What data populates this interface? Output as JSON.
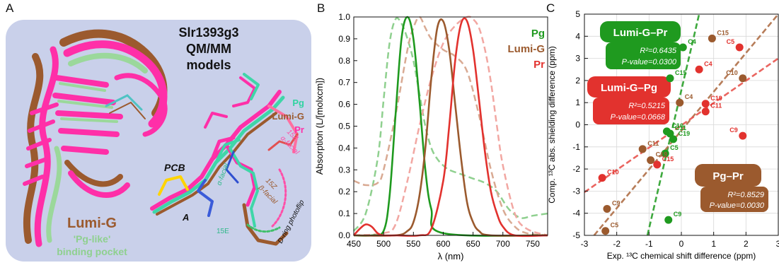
{
  "colors": {
    "pg": "#1f9a1f",
    "lumig": "#9b5a2e",
    "pr": "#e2322e",
    "pink": "#ff2fa8",
    "panel_bg": "#c9d0ea",
    "mint": "#9bd89b"
  },
  "panelA": {
    "letter": "A",
    "title_lines": [
      "Slr1393g3",
      "QM/MM",
      "models"
    ],
    "legend": {
      "pg": "Pg",
      "lumig": "Lumi-G",
      "pr": "Pr"
    },
    "labels": {
      "pcb": "PCB",
      "ring_a": "A",
      "z15_alpha": "15Z",
      "alpha_facial_top": "α-facial",
      "z15_beta": "15Z",
      "beta_facial": "β-facial",
      "alpha_facial_bottom": "α-facial",
      "e15": "15E",
      "photoflip": "D-ring photoflip"
    },
    "caption_title": "Lumi-G",
    "caption_lines": [
      "'Pg-like'",
      "binding pocket"
    ]
  },
  "panelB": {
    "letter": "B",
    "legend": {
      "pg": "Pg",
      "lumig": "Lumi-G",
      "pr": "Pr"
    }
  },
  "panelC": {
    "letter": "C",
    "boxes": {
      "lumig_pr": {
        "title": "Lumi-G–Pr",
        "r2": "R²=0.6435",
        "p": "P-value=0.0300"
      },
      "lumig_pg": {
        "title": "Lumi-G–Pg",
        "r2": "R²=0.5215",
        "p": "P-value=0.0668"
      },
      "pg_pr": {
        "title": "Pg–Pr",
        "r2": "R²=0.8529",
        "p": "P-value=0.0030"
      }
    }
  },
  "chart_data": [
    {
      "type": "line",
      "xlabel": "λ (nm)",
      "ylabel": "Absorption (L/[molxcm])",
      "xlim": [
        450,
        775
      ],
      "ylim": [
        0,
        1.0
      ],
      "x_ticks": [
        450,
        500,
        550,
        600,
        650,
        700,
        750
      ],
      "y_ticks": [
        0,
        0.1,
        0.2,
        0.3,
        0.4,
        0.5,
        0.6,
        0.7,
        0.8,
        0.9,
        1.0
      ],
      "series": [
        {
          "name": "Pg",
          "style": "solid",
          "color": "#1f9a1f",
          "x": [
            450,
            480,
            500,
            510,
            520,
            530,
            540,
            550,
            560,
            570,
            580,
            600,
            775
          ],
          "y": [
            0.0,
            0.0,
            0.02,
            0.18,
            0.55,
            0.9,
            1.0,
            0.9,
            0.62,
            0.3,
            0.12,
            0.01,
            0.0
          ]
        },
        {
          "name": "Lumi-G",
          "style": "solid",
          "color": "#9b5a2e",
          "x": [
            450,
            520,
            540,
            550,
            560,
            570,
            580,
            590,
            600,
            610,
            620,
            630,
            640,
            650,
            660,
            680,
            775
          ],
          "y": [
            0.0,
            0.0,
            0.02,
            0.06,
            0.18,
            0.4,
            0.72,
            0.95,
            0.98,
            0.85,
            0.6,
            0.35,
            0.15,
            0.06,
            0.02,
            0.0,
            0.0
          ]
        },
        {
          "name": "Pr",
          "style": "solid",
          "color": "#e2322e",
          "x": [
            450,
            460,
            470,
            480,
            490,
            500,
            520,
            560,
            580,
            600,
            610,
            620,
            630,
            640,
            650,
            660,
            670,
            680,
            690,
            700,
            720,
            775
          ],
          "y": [
            0.0,
            0.03,
            0.05,
            0.04,
            0.01,
            0.0,
            0.0,
            0.0,
            0.03,
            0.25,
            0.5,
            0.8,
            0.97,
            0.98,
            0.85,
            0.62,
            0.38,
            0.2,
            0.1,
            0.04,
            0.0,
            0.0
          ]
        },
        {
          "name": "Pg",
          "style": "dashed",
          "color": "#8fd08f",
          "x": [
            450,
            470,
            490,
            500,
            510,
            520,
            530,
            540,
            550,
            560,
            570,
            580,
            590,
            600,
            610,
            630,
            650,
            670,
            690,
            710,
            730,
            750,
            775
          ],
          "y": [
            0.02,
            0.1,
            0.35,
            0.62,
            0.88,
            0.99,
            0.97,
            0.9,
            0.8,
            0.65,
            0.5,
            0.4,
            0.35,
            0.32,
            0.3,
            0.28,
            0.26,
            0.24,
            0.2,
            0.12,
            0.08,
            0.09,
            0.1
          ]
        },
        {
          "name": "Lumi-G",
          "style": "dashed",
          "color": "#d9aa93",
          "x": [
            450,
            470,
            490,
            500,
            520,
            540,
            550,
            560,
            570,
            580,
            600,
            620,
            640,
            660,
            680,
            700,
            720,
            740,
            775
          ],
          "y": [
            0.25,
            0.23,
            0.24,
            0.3,
            0.55,
            0.85,
            0.95,
            1.0,
            0.95,
            0.9,
            0.85,
            0.82,
            0.75,
            0.55,
            0.3,
            0.12,
            0.04,
            0.01,
            0.0
          ]
        },
        {
          "name": "Pr",
          "style": "dashed",
          "color": "#f2a7a2",
          "x": [
            450,
            500,
            520,
            540,
            560,
            580,
            600,
            620,
            640,
            650,
            660,
            670,
            680,
            690,
            700,
            720,
            740,
            775
          ],
          "y": [
            0.0,
            0.01,
            0.05,
            0.25,
            0.5,
            0.72,
            0.88,
            0.96,
            1.0,
            0.99,
            0.95,
            0.85,
            0.7,
            0.5,
            0.32,
            0.1,
            0.03,
            0.0
          ]
        }
      ]
    },
    {
      "type": "scatter",
      "xlabel": "Exp. ¹³C chemical shift difference (ppm)",
      "ylabel": "Comp. ¹³C abs. shielding difference (ppm)",
      "xlim": [
        -3,
        3
      ],
      "ylim": [
        -5,
        5
      ],
      "x_ticks": [
        -3,
        -2,
        -1,
        0,
        1,
        2,
        3
      ],
      "y_ticks": [
        -5,
        -4,
        -3,
        -2,
        -1,
        0,
        1,
        2,
        3,
        4,
        5
      ],
      "series": [
        {
          "name": "Lumi-G–Pr",
          "color": "#1f9a1f",
          "fit": [
            [
              -1.05,
              -5
            ],
            [
              0.55,
              5
            ]
          ],
          "points": [
            {
              "label": "C4",
              "x": 0.05,
              "y": 3.5
            },
            {
              "label": "C15",
              "x": -0.35,
              "y": 2.1
            },
            {
              "label": "C10",
              "x": -0.45,
              "y": -0.3
            },
            {
              "label": "C11",
              "x": -0.35,
              "y": -0.4
            },
            {
              "label": "C19",
              "x": -0.25,
              "y": -0.65
            },
            {
              "label": "C5",
              "x": -0.5,
              "y": -1.3
            },
            {
              "label": "C9",
              "x": -0.4,
              "y": -4.3
            }
          ]
        },
        {
          "name": "Lumi-G–Pg",
          "color": "#9b5a2e",
          "fit": [
            [
              -2.7,
              -5
            ],
            [
              3,
              5
            ]
          ],
          "points": [
            {
              "label": "C15",
              "x": 0.95,
              "y": 3.9
            },
            {
              "label": "C10",
              "x": 1.9,
              "y": 2.1
            },
            {
              "label": "C4",
              "x": -0.05,
              "y": 1.0
            },
            {
              "label": "C11",
              "x": -1.2,
              "y": -1.1
            },
            {
              "label": "C19",
              "x": -0.95,
              "y": -1.6
            },
            {
              "label": "C9",
              "x": -2.3,
              "y": -3.8
            },
            {
              "label": "C5",
              "x": -2.35,
              "y": -4.8
            }
          ]
        },
        {
          "name": "Pg–Pr",
          "color": "#e2322e",
          "fit": [
            [
              -3,
              -3.05
            ],
            [
              3,
              3.0
            ]
          ],
          "points": [
            {
              "label": "C5",
              "x": 1.8,
              "y": 3.5
            },
            {
              "label": "C4",
              "x": 0.55,
              "y": 2.5
            },
            {
              "label": "C19",
              "x": 0.75,
              "y": 0.95
            },
            {
              "label": "C11",
              "x": 0.75,
              "y": 0.6
            },
            {
              "label": "C9",
              "x": 1.9,
              "y": -0.5
            },
            {
              "label": "C15",
              "x": -0.75,
              "y": -1.8
            },
            {
              "label": "C10",
              "x": -2.45,
              "y": -2.4
            }
          ]
        }
      ]
    }
  ]
}
